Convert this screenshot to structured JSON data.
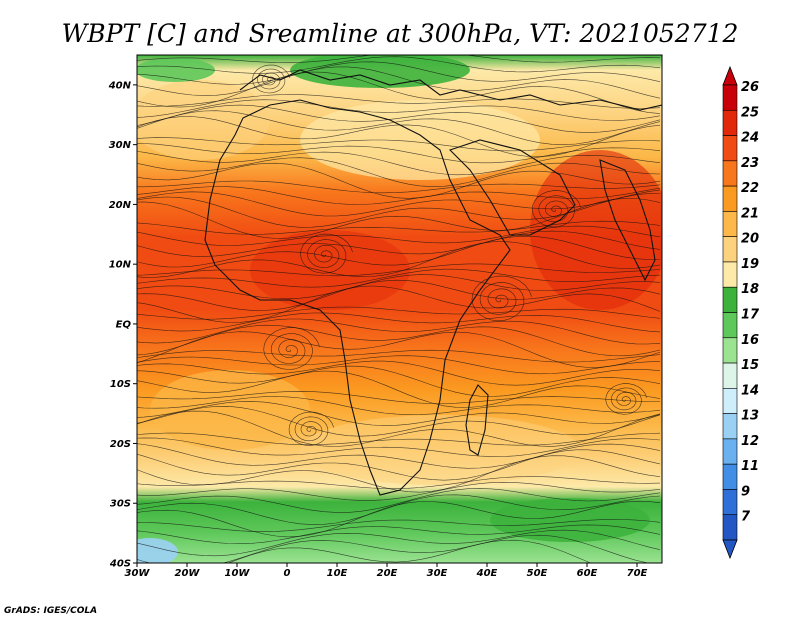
{
  "title": "WBPT [C] and Sreamline at 300hPa, VT: 2021052712",
  "footer": "GrADS: IGES/COLA",
  "y_ticks": [
    "40N",
    "30N",
    "20N",
    "10N",
    "EQ",
    "10S",
    "20S",
    "30S",
    "40S"
  ],
  "x_ticks": [
    "30W",
    "20W",
    "10W",
    "0",
    "10E",
    "20E",
    "30E",
    "40E",
    "50E",
    "60E",
    "70E"
  ],
  "colorbar": {
    "labels": [
      "26",
      "25",
      "24",
      "23",
      "22",
      "21",
      "20",
      "19",
      "18",
      "17",
      "16",
      "15",
      "14",
      "13",
      "12",
      "11",
      "9",
      "7"
    ],
    "colors": [
      "#c8000a",
      "#e1280a",
      "#f04b12",
      "#f8761c",
      "#fb9a20",
      "#fcb848",
      "#fdd27e",
      "#fde9a8",
      "#3cb23c",
      "#5ec85a",
      "#9be291",
      "#dcf5e8",
      "#cdeefa",
      "#9bd0f5",
      "#6bb0ef",
      "#428ee6",
      "#2f6fd8",
      "#2358c4"
    ]
  },
  "map_data": {
    "field": "Wet-bulb potential temperature at 300hPa",
    "lon_range": [
      -30,
      75
    ],
    "lat_range": [
      -40,
      45
    ]
  }
}
